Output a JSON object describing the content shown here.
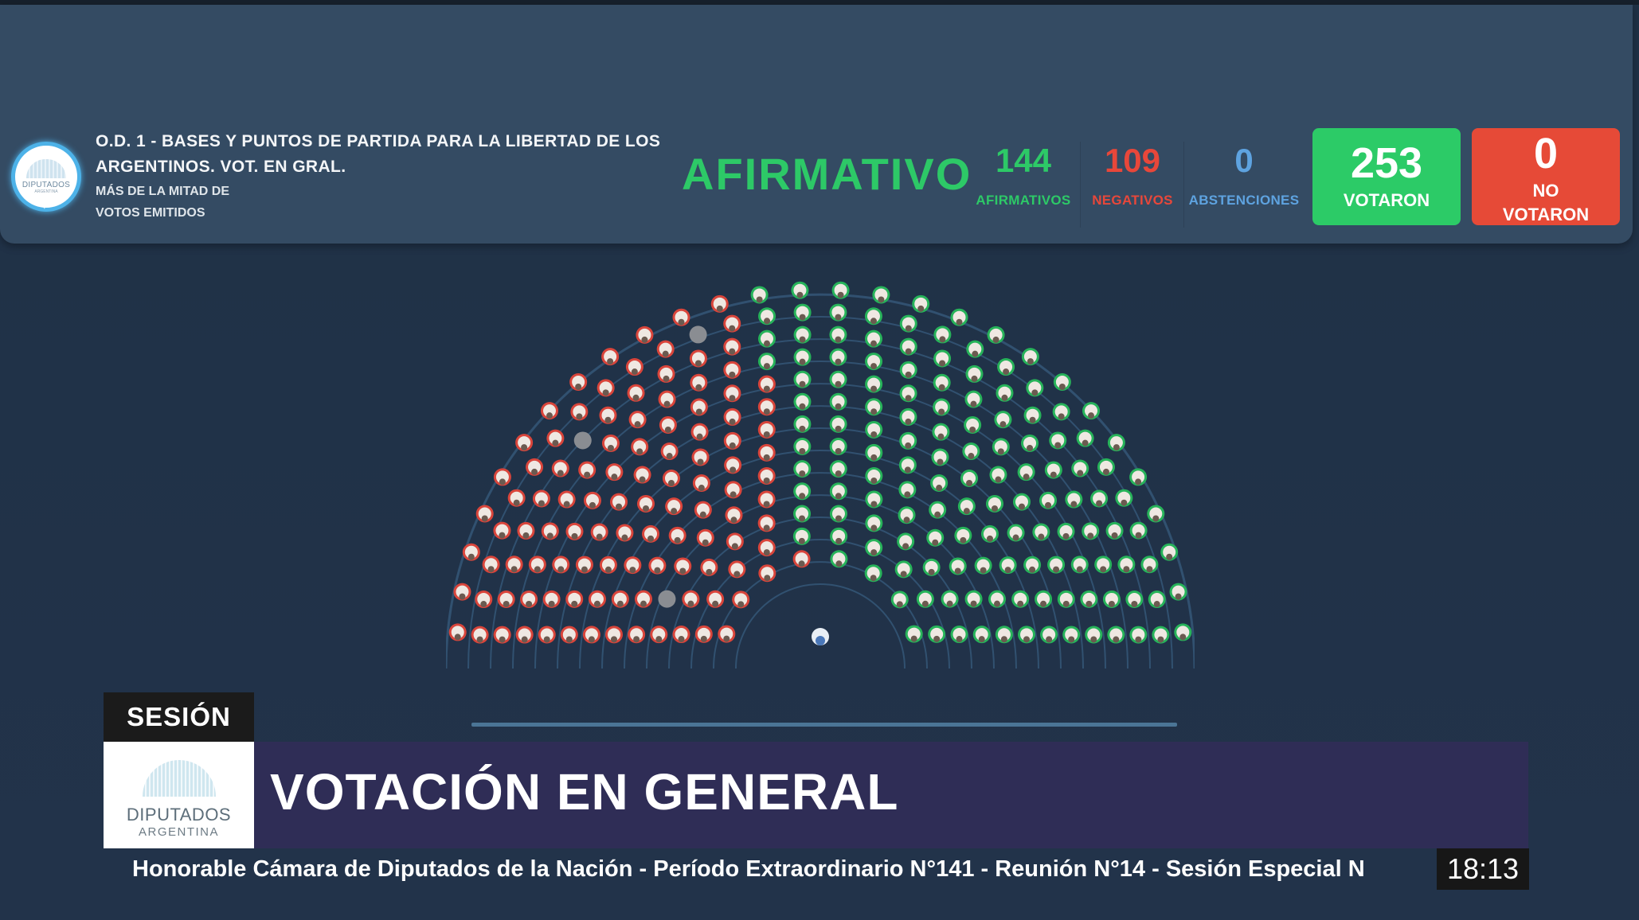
{
  "header": {
    "logo": {
      "line1": "DIPUTADOS",
      "line2": "ARGENTINA"
    },
    "title": "O.D. 1 - BASES Y PUNTOS DE PARTIDA PARA LA LIBERTAD DE LOS ARGENTINOS. VOT. EN GRAL.",
    "majority_line1": "MÁS DE LA MITAD DE",
    "majority_line2": "VOTOS EMITIDOS",
    "result": "AFIRMATIVO",
    "stats": [
      {
        "value": "144",
        "label": "AFIRMATIVOS",
        "color": "#2dc967"
      },
      {
        "value": "109",
        "label": "NEGATIVOS",
        "color": "#e8473a"
      },
      {
        "value": "0",
        "label": "ABSTENCIONES",
        "color": "#5ea3e0"
      }
    ],
    "voted": {
      "value": "253",
      "label": "VOTARON",
      "color": "#2ccb67"
    },
    "not_voted": {
      "value": "0",
      "label_line1": "NO",
      "label_line2": "VOTARON",
      "color": "#e64a37"
    }
  },
  "hemicycle": {
    "rows": [
      8,
      10,
      12,
      14,
      16,
      18,
      20,
      22,
      24,
      26,
      28,
      30,
      28
    ],
    "counts": {
      "afirmativo": 144,
      "negativo": 109,
      "ausente": 3,
      "presidente": 1
    },
    "colors": {
      "afirmativo": "#27b35a",
      "negativo": "#d9453b",
      "ausente": "#8a8d92",
      "presidente": "#4a77b8",
      "face": "#efe8e2"
    }
  },
  "banner": {
    "tag": "SESIÓN",
    "logo": {
      "line1": "DIPUTADOS",
      "line2": "ARGENTINA"
    },
    "headline": "VOTACIÓN EN GENERAL"
  },
  "ticker": {
    "text": "Honorable Cámara de Diputados de la Nación - Período Extraordinario N°141 - Reunión N°14 - Sesión Especial N",
    "time": "18:13"
  }
}
